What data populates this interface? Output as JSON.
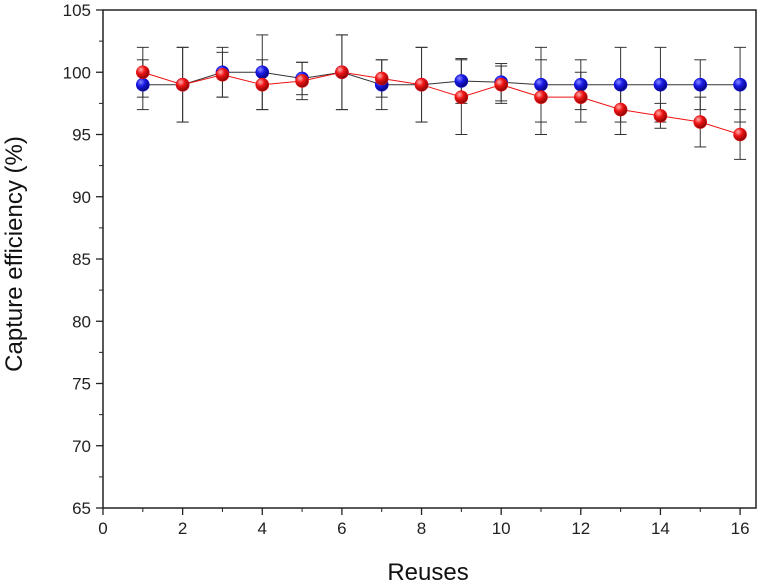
{
  "chart_data": {
    "type": "scatter",
    "title": "",
    "xlabel": "Reuses",
    "ylabel": "Capture efficiency (%)",
    "xlim": [
      0,
      16.4
    ],
    "ylim": [
      65,
      105
    ],
    "xticks": [
      0,
      2,
      4,
      6,
      8,
      10,
      12,
      14,
      16
    ],
    "yticks": [
      65,
      70,
      75,
      80,
      85,
      90,
      95,
      100,
      105
    ],
    "grid": false,
    "legend": "none",
    "series": [
      {
        "color": "#1010e0",
        "line_color": "#333333",
        "x": [
          1,
          2,
          3,
          4,
          5,
          6,
          7,
          8,
          9,
          10,
          11,
          12,
          13,
          14,
          15,
          16
        ],
        "y": [
          99,
          99,
          100,
          100,
          99.5,
          100,
          99,
          99,
          99.3,
          99.2,
          99,
          99,
          99,
          99,
          99,
          99
        ],
        "err_low": [
          2,
          3,
          2,
          3,
          1.3,
          3,
          2,
          3,
          1.8,
          1.5,
          3,
          2,
          3,
          3,
          2,
          3
        ],
        "err_high": [
          2,
          3,
          2,
          3,
          1.3,
          3,
          2,
          3,
          1.8,
          1.5,
          3,
          2,
          3,
          3,
          2,
          3
        ]
      },
      {
        "color": "#ee1111",
        "line_color": "#ee1111",
        "x": [
          1,
          2,
          3,
          4,
          5,
          6,
          7,
          8,
          9,
          10,
          11,
          12,
          13,
          14,
          15,
          16
        ],
        "y": [
          100,
          99,
          99.8,
          99,
          99.3,
          100,
          99.5,
          99,
          98,
          99,
          98,
          98,
          97,
          96.5,
          96,
          95
        ],
        "err_low": [
          2,
          3,
          1.8,
          2,
          1.5,
          3,
          1.5,
          3,
          3,
          1.5,
          3,
          2,
          2,
          1,
          2,
          2
        ],
        "err_high": [
          2,
          3,
          1.8,
          2,
          1.5,
          3,
          1.5,
          3,
          3,
          1.5,
          3,
          2,
          2,
          1,
          2,
          2
        ]
      }
    ]
  }
}
